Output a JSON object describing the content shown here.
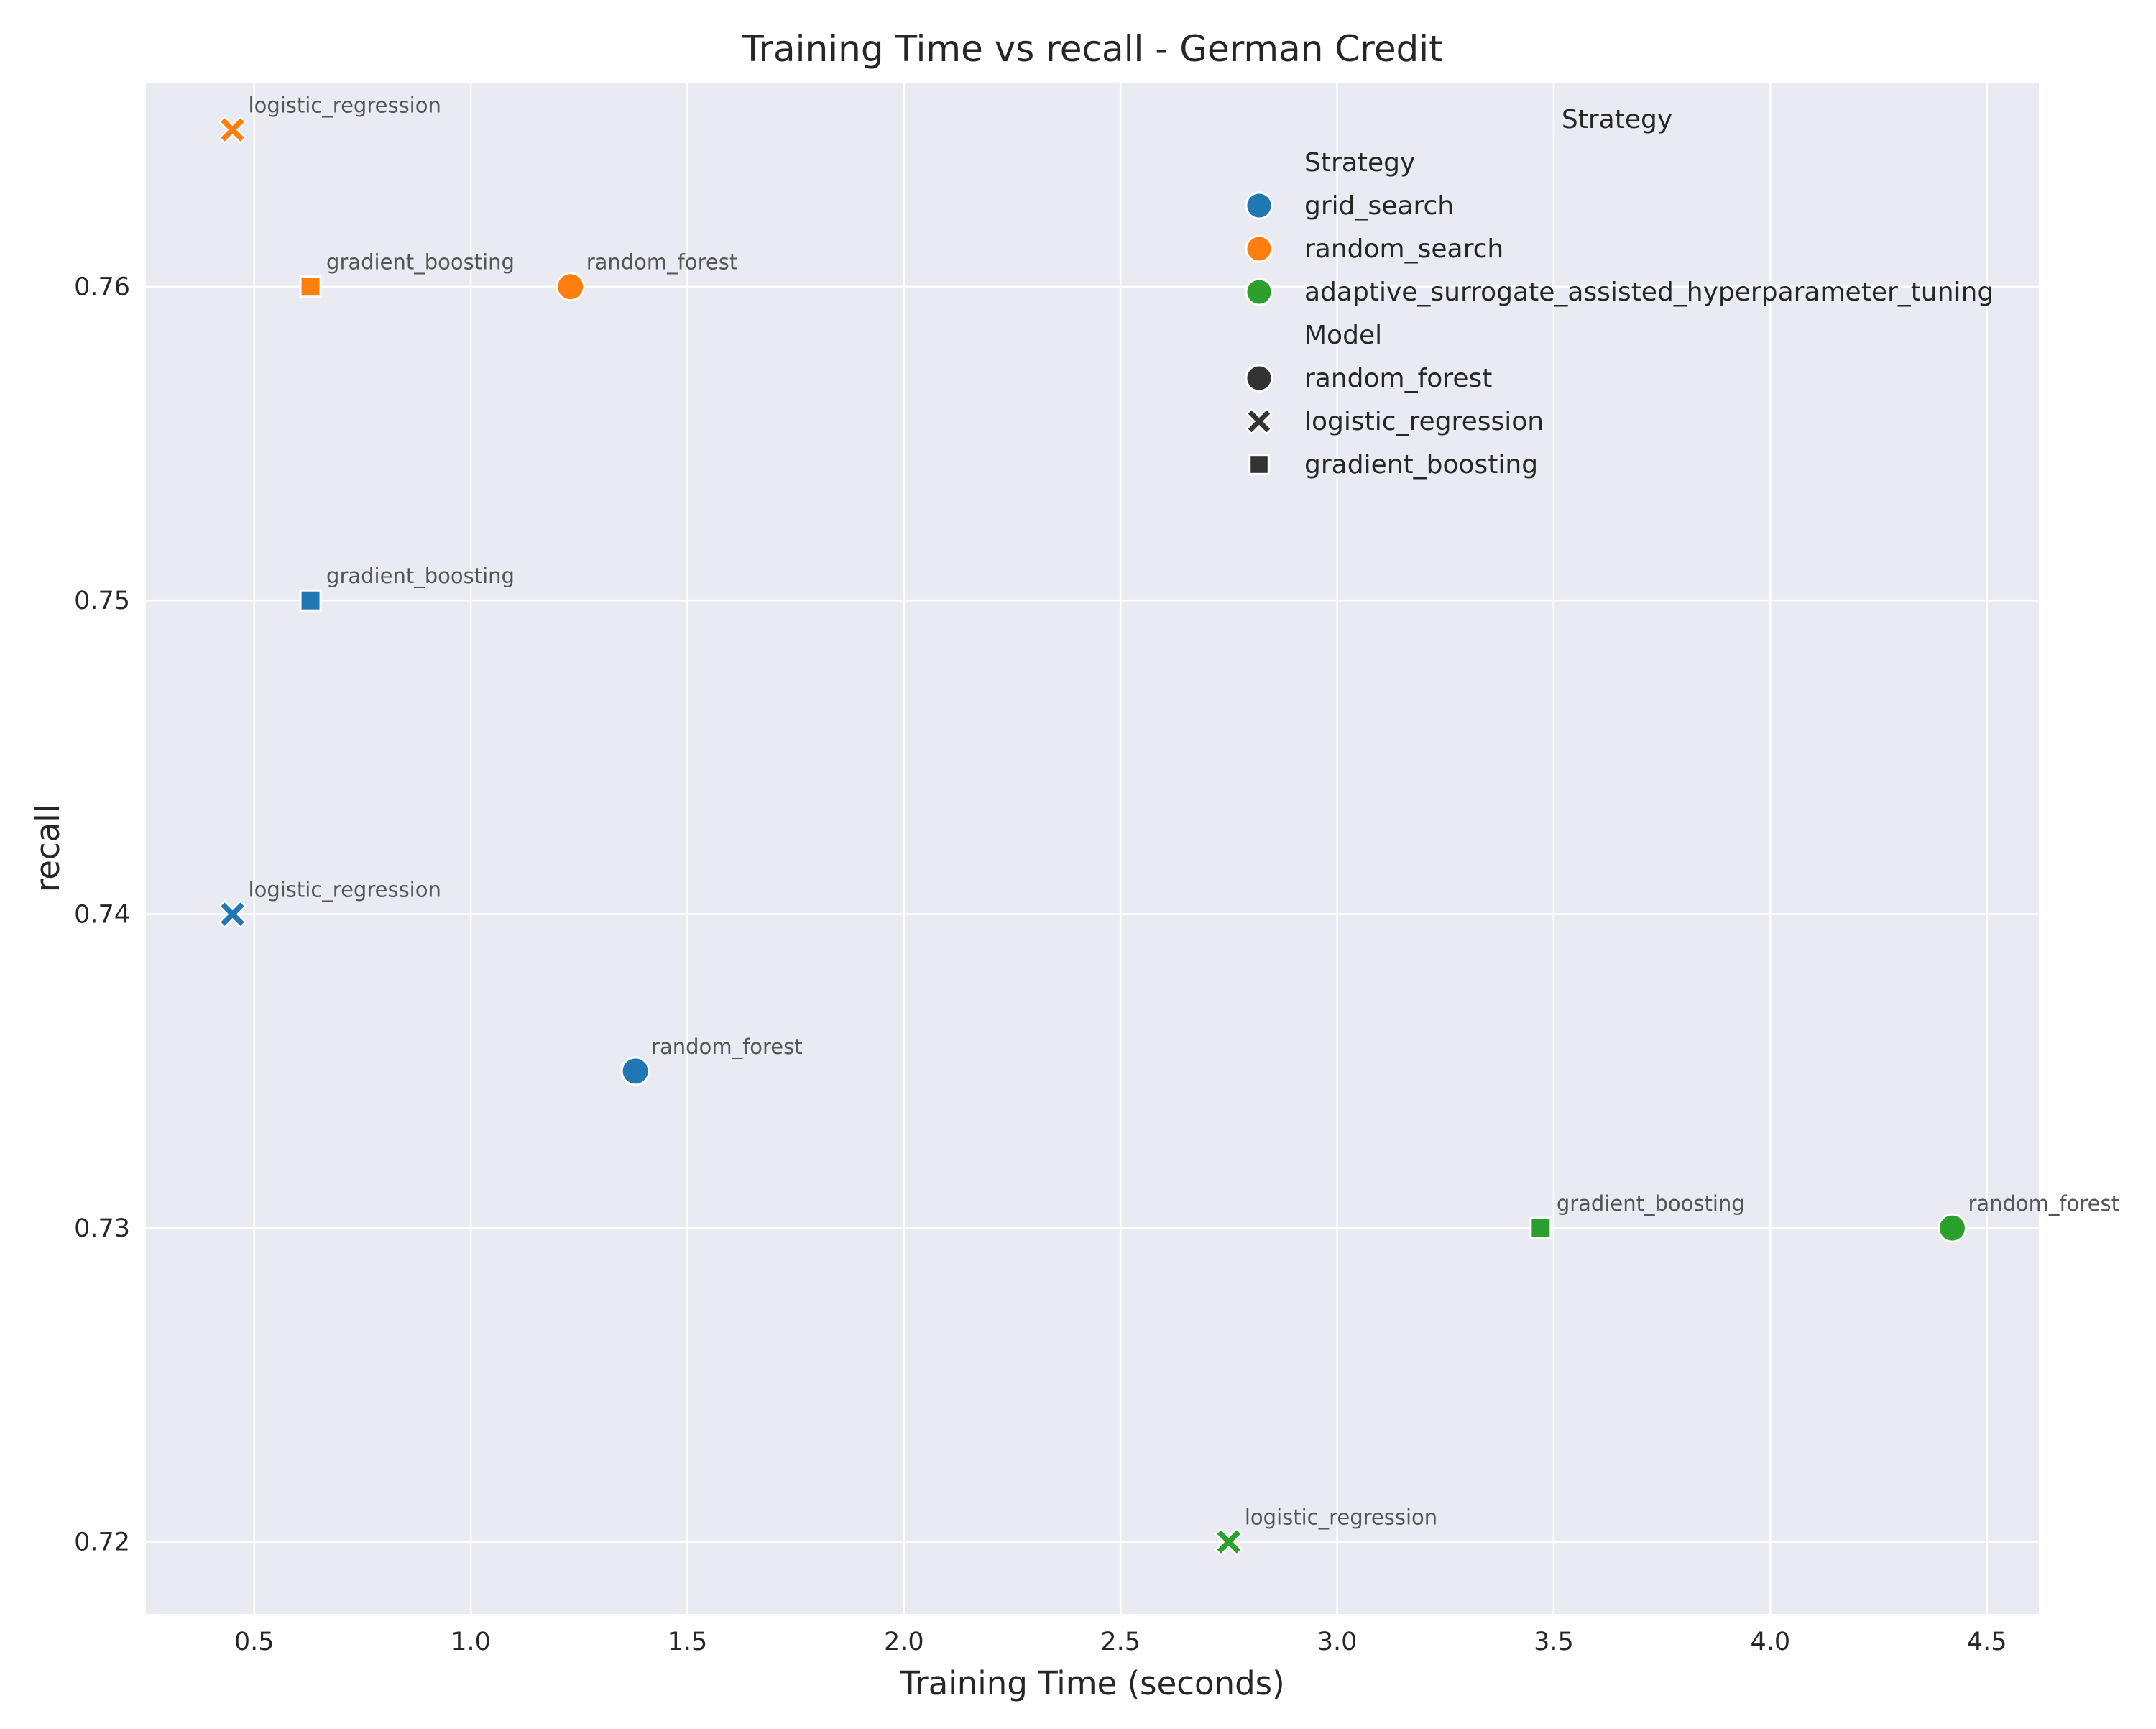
{
  "chart_data": {
    "type": "scatter",
    "title": "Training Time vs recall - German Credit",
    "xlabel": "Training Time (seconds)",
    "ylabel": "recall",
    "xlim": [
      0.25,
      4.62
    ],
    "ylim": [
      0.7177,
      0.7665
    ],
    "xticks": [
      0.5,
      1.0,
      1.5,
      2.0,
      2.5,
      3.0,
      3.5,
      4.0,
      4.5
    ],
    "xtick_labels": [
      "0.5",
      "1.0",
      "1.5",
      "2.0",
      "2.5",
      "3.0",
      "3.5",
      "4.0",
      "4.5"
    ],
    "yticks": [
      0.72,
      0.73,
      0.74,
      0.75,
      0.76
    ],
    "ytick_labels": [
      "0.72",
      "0.73",
      "0.74",
      "0.75",
      "0.76"
    ],
    "grid": true,
    "legend": {
      "placement": "top-right",
      "title": "Strategy",
      "hue_heading": "Strategy",
      "style_heading": "Model",
      "strategies": [
        {
          "name": "grid_search",
          "color": "#1f77b4"
        },
        {
          "name": "random_search",
          "color": "#ff7f0e"
        },
        {
          "name": "adaptive_surrogate_assisted_hyperparameter_tuning",
          "color": "#2ca02c"
        }
      ],
      "models": [
        {
          "name": "random_forest",
          "marker": "circle"
        },
        {
          "name": "logistic_regression",
          "marker": "x"
        },
        {
          "name": "gradient_boosting",
          "marker": "square"
        }
      ]
    },
    "points": [
      {
        "strategy": "grid_search",
        "model": "random_forest",
        "x": 1.38,
        "y": 0.735,
        "label": "random_forest"
      },
      {
        "strategy": "grid_search",
        "model": "logistic_regression",
        "x": 0.45,
        "y": 0.74,
        "label": "logistic_regression"
      },
      {
        "strategy": "grid_search",
        "model": "gradient_boosting",
        "x": 0.63,
        "y": 0.75,
        "label": "gradient_boosting"
      },
      {
        "strategy": "random_search",
        "model": "random_forest",
        "x": 1.23,
        "y": 0.76,
        "label": "random_forest"
      },
      {
        "strategy": "random_search",
        "model": "logistic_regression",
        "x": 0.45,
        "y": 0.765,
        "label": "logistic_regression"
      },
      {
        "strategy": "random_search",
        "model": "gradient_boosting",
        "x": 0.63,
        "y": 0.76,
        "label": "gradient_boosting"
      },
      {
        "strategy": "adaptive_surrogate_assisted_hyperparameter_tuning",
        "model": "random_forest",
        "x": 4.42,
        "y": 0.73,
        "label": "random_forest"
      },
      {
        "strategy": "adaptive_surrogate_assisted_hyperparameter_tuning",
        "model": "logistic_regression",
        "x": 2.75,
        "y": 0.72,
        "label": "logistic_regression"
      },
      {
        "strategy": "adaptive_surrogate_assisted_hyperparameter_tuning",
        "model": "gradient_boosting",
        "x": 3.47,
        "y": 0.73,
        "label": "gradient_boosting"
      }
    ],
    "colors": {
      "plot_background": "#eaeaf2",
      "grid": "#ffffff",
      "legend_model_marker": "#333333"
    }
  }
}
